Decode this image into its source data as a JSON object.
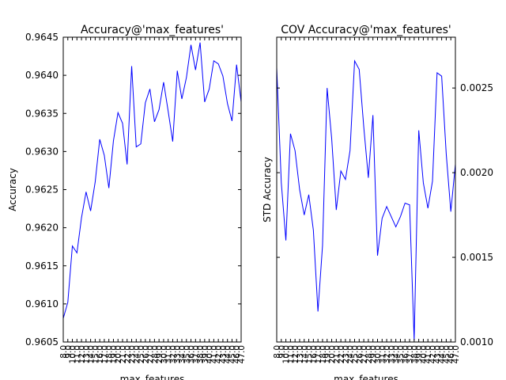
{
  "chart_data": [
    {
      "type": "line",
      "title": "Accuracy@'max_features'",
      "x_label": "max_features",
      "y_label": "Accuracy",
      "x": [
        8,
        9,
        10,
        11,
        12,
        13,
        14,
        15,
        16,
        17,
        18,
        19,
        20,
        21,
        22,
        23,
        24,
        25,
        26,
        27,
        28,
        29,
        30,
        31,
        32,
        33,
        34,
        35,
        36,
        37,
        38,
        39,
        40,
        41,
        42,
        43,
        44,
        45,
        46,
        47
      ],
      "series": [
        {
          "name": "Accuracy",
          "color": "#0000ff",
          "values": [
            0.96081,
            0.96102,
            0.96176,
            0.96167,
            0.96213,
            0.96247,
            0.96222,
            0.9626,
            0.96316,
            0.96295,
            0.96252,
            0.96314,
            0.96351,
            0.96337,
            0.96283,
            0.96412,
            0.96306,
            0.9631,
            0.96364,
            0.96382,
            0.96339,
            0.96355,
            0.96391,
            0.96353,
            0.96313,
            0.96406,
            0.96369,
            0.96397,
            0.9644,
            0.96407,
            0.96443,
            0.96365,
            0.96382,
            0.96419,
            0.96415,
            0.96399,
            0.96363,
            0.9634,
            0.96414,
            0.96365
          ]
        }
      ],
      "xlim": [
        8,
        47
      ],
      "xticks": [
        {
          "value": 8,
          "label": "8.0"
        },
        {
          "value": 9,
          "label": "9.0"
        },
        {
          "value": 10,
          "label": "10.0"
        },
        {
          "value": 11,
          "label": "11.0"
        },
        {
          "value": 12,
          "label": "12.0"
        },
        {
          "value": 13,
          "label": "13.0"
        },
        {
          "value": 14,
          "label": "14.0"
        },
        {
          "value": 15,
          "label": "15.0"
        },
        {
          "value": 16,
          "label": "16.0"
        },
        {
          "value": 17,
          "label": "17.0"
        },
        {
          "value": 18,
          "label": "18.0"
        },
        {
          "value": 19,
          "label": "19.0"
        },
        {
          "value": 20,
          "label": "20.0"
        },
        {
          "value": 21,
          "label": "21.0"
        },
        {
          "value": 22,
          "label": "22.0"
        },
        {
          "value": 23,
          "label": "23.0"
        },
        {
          "value": 24,
          "label": "24.0"
        },
        {
          "value": 25,
          "label": "25.0"
        },
        {
          "value": 26,
          "label": "26.0"
        },
        {
          "value": 27,
          "label": "27.0"
        },
        {
          "value": 28,
          "label": "28.0"
        },
        {
          "value": 29,
          "label": "29.0"
        },
        {
          "value": 30,
          "label": "30.0"
        },
        {
          "value": 31,
          "label": "31.0"
        },
        {
          "value": 32,
          "label": "32.0"
        },
        {
          "value": 33,
          "label": "33.0"
        },
        {
          "value": 34,
          "label": "34.0"
        },
        {
          "value": 35,
          "label": "35.0"
        },
        {
          "value": 36,
          "label": "36.0"
        },
        {
          "value": 37,
          "label": "37.0"
        },
        {
          "value": 38,
          "label": "38.0"
        },
        {
          "value": 39,
          "label": "39.0"
        },
        {
          "value": 40,
          "label": "40.0"
        },
        {
          "value": 41,
          "label": "41.0"
        },
        {
          "value": 42,
          "label": "42.0"
        },
        {
          "value": 43,
          "label": "43.0"
        },
        {
          "value": 44,
          "label": "44.0"
        },
        {
          "value": 45,
          "label": "45.0"
        },
        {
          "value": 46,
          "label": "46.0"
        },
        {
          "value": 47,
          "label": "47.0"
        }
      ],
      "ylim": [
        0.9605,
        0.9645
      ],
      "yticks": [
        {
          "value": 0.9605,
          "label": "0.9605"
        },
        {
          "value": 0.961,
          "label": "0.9610"
        },
        {
          "value": 0.9615,
          "label": "0.9615"
        },
        {
          "value": 0.962,
          "label": "0.9620"
        },
        {
          "value": 0.9625,
          "label": "0.9625"
        },
        {
          "value": 0.963,
          "label": "0.9630"
        },
        {
          "value": 0.9635,
          "label": "0.9635"
        },
        {
          "value": 0.964,
          "label": "0.9640"
        },
        {
          "value": 0.9645,
          "label": "0.9645"
        }
      ],
      "y_axis_side": "left"
    },
    {
      "type": "line",
      "title": "COV Accuracy@'max_features'",
      "x_label": "max_features",
      "y_label": "STD Accuracy",
      "x": [
        8,
        9,
        10,
        11,
        12,
        13,
        14,
        15,
        16,
        17,
        18,
        19,
        20,
        21,
        22,
        23,
        24,
        25,
        26,
        27,
        28,
        29,
        30,
        31,
        32,
        33,
        34,
        35,
        36,
        37,
        38,
        39,
        40,
        41,
        42,
        43,
        44,
        45,
        46,
        47
      ],
      "series": [
        {
          "name": "STD Accuracy",
          "color": "#0000ff",
          "values": [
            0.00262,
            0.00194,
            0.0016,
            0.00223,
            0.00213,
            0.0019,
            0.00175,
            0.00187,
            0.00166,
            0.00118,
            0.00157,
            0.0025,
            0.0022,
            0.00178,
            0.00201,
            0.00196,
            0.00213,
            0.00266,
            0.00261,
            0.00227,
            0.00197,
            0.00234,
            0.00151,
            0.00173,
            0.0018,
            0.00174,
            0.00168,
            0.00174,
            0.00182,
            0.00181,
            0.00101,
            0.00225,
            0.00194,
            0.00179,
            0.00195,
            0.00259,
            0.00257,
            0.00211,
            0.00177,
            0.00205
          ]
        }
      ],
      "xlim": [
        8,
        47
      ],
      "xticks": [
        {
          "value": 8,
          "label": "8.0"
        },
        {
          "value": 9,
          "label": "9.0"
        },
        {
          "value": 10,
          "label": "10.0"
        },
        {
          "value": 11,
          "label": "11.0"
        },
        {
          "value": 12,
          "label": "12.0"
        },
        {
          "value": 13,
          "label": "13.0"
        },
        {
          "value": 14,
          "label": "14.0"
        },
        {
          "value": 15,
          "label": "15.0"
        },
        {
          "value": 16,
          "label": "16.0"
        },
        {
          "value": 17,
          "label": "17.0"
        },
        {
          "value": 18,
          "label": "18.0"
        },
        {
          "value": 19,
          "label": "19.0"
        },
        {
          "value": 20,
          "label": "20.0"
        },
        {
          "value": 21,
          "label": "21.0"
        },
        {
          "value": 22,
          "label": "22.0"
        },
        {
          "value": 23,
          "label": "23.0"
        },
        {
          "value": 24,
          "label": "24.0"
        },
        {
          "value": 25,
          "label": "25.0"
        },
        {
          "value": 26,
          "label": "26.0"
        },
        {
          "value": 27,
          "label": "27.0"
        },
        {
          "value": 28,
          "label": "28.0"
        },
        {
          "value": 29,
          "label": "29.0"
        },
        {
          "value": 30,
          "label": "30.0"
        },
        {
          "value": 31,
          "label": "31.0"
        },
        {
          "value": 32,
          "label": "32.0"
        },
        {
          "value": 33,
          "label": "33.0"
        },
        {
          "value": 34,
          "label": "34.0"
        },
        {
          "value": 35,
          "label": "35.0"
        },
        {
          "value": 36,
          "label": "36.0"
        },
        {
          "value": 37,
          "label": "37.0"
        },
        {
          "value": 38,
          "label": "38.0"
        },
        {
          "value": 39,
          "label": "39.0"
        },
        {
          "value": 40,
          "label": "40.0"
        },
        {
          "value": 41,
          "label": "41.0"
        },
        {
          "value": 42,
          "label": "42.0"
        },
        {
          "value": 43,
          "label": "43.0"
        },
        {
          "value": 44,
          "label": "44.0"
        },
        {
          "value": 45,
          "label": "45.0"
        },
        {
          "value": 46,
          "label": "46.0"
        },
        {
          "value": 47,
          "label": "47.0"
        }
      ],
      "ylim": [
        0.001,
        0.0028
      ],
      "yticks": [
        {
          "value": 0.001,
          "label": "0.0010"
        },
        {
          "value": 0.0015,
          "label": "0.0015"
        },
        {
          "value": 0.002,
          "label": "0.0020"
        },
        {
          "value": 0.0025,
          "label": "0.0025"
        }
      ],
      "y_axis_side": "right"
    }
  ]
}
